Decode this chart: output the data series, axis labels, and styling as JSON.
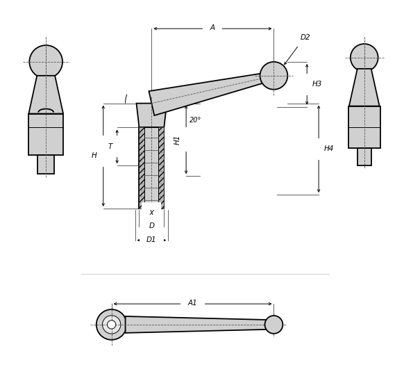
{
  "bg_color": "#ffffff",
  "line_color": "#000000",
  "fill_color": "#d0d0d0",
  "fig_width": 5.82,
  "fig_height": 5.25,
  "dpi": 100,
  "labels": {
    "A": "A",
    "A1": "A1",
    "D": "D",
    "D1": "D1",
    "D2": "D2",
    "H": "H",
    "H1": "H1",
    "H3": "H3",
    "H4": "H4",
    "T": "T",
    "X": "X",
    "angle": "20°"
  }
}
